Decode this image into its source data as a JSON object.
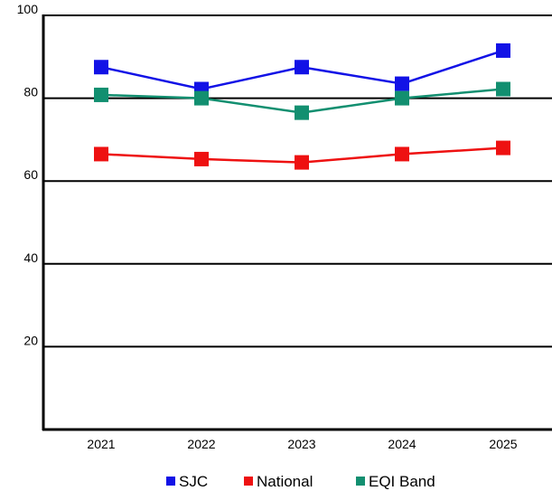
{
  "chart_data": {
    "type": "line",
    "title": "",
    "xlabel": "",
    "ylabel": "",
    "categories": [
      "2021",
      "2022",
      "2023",
      "2024",
      "2025"
    ],
    "ylim": [
      0,
      100
    ],
    "yticks": [
      20,
      40,
      60,
      80,
      100
    ],
    "grid": "horizontal",
    "legend_position": "bottom",
    "series": [
      {
        "name": "SJC",
        "color": "#1212e6",
        "values": [
          87.5,
          82.2,
          87.5,
          83.5,
          91.5
        ]
      },
      {
        "name": "National",
        "color": "#ee1111",
        "values": [
          66.5,
          65.3,
          64.5,
          66.5,
          68.0
        ]
      },
      {
        "name": "EQI Band",
        "color": "#128f70",
        "values": [
          80.8,
          80.0,
          76.5,
          80.0,
          82.2
        ]
      }
    ]
  }
}
